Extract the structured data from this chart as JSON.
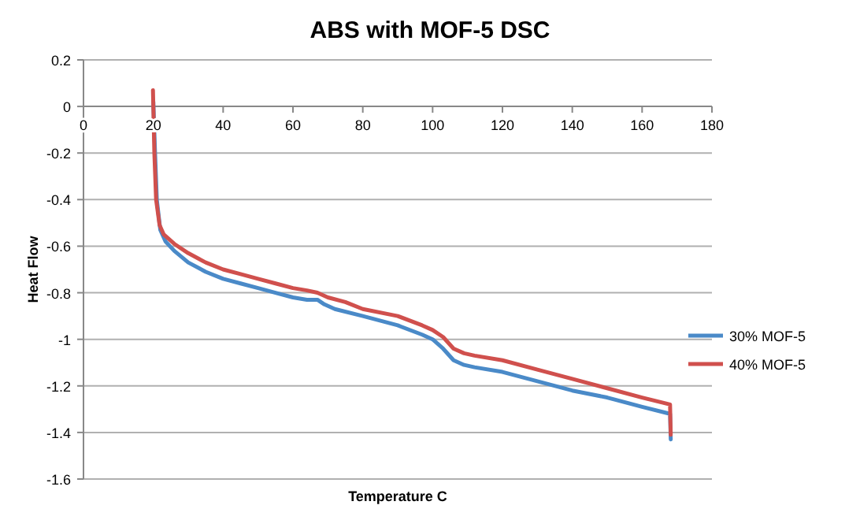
{
  "chart_data": {
    "type": "line",
    "title": "ABS with MOF-5 DSC",
    "xlabel": "Temperature C",
    "ylabel": "Heat Flow",
    "xlim": [
      0,
      180
    ],
    "xticks": [
      0,
      20,
      40,
      60,
      80,
      100,
      120,
      140,
      160,
      180
    ],
    "ylim": [
      -1.6,
      0.2
    ],
    "yticks": [
      -1.6,
      -1.4,
      -1.2,
      -1,
      -0.8,
      -0.6,
      -0.4,
      -0.2,
      0,
      0.2
    ],
    "grid": "y",
    "legend": "right",
    "marker": "none",
    "line_style": "solid",
    "series": [
      {
        "name": "30% MOF-5",
        "color": "#4a8ac8",
        "x": [
          20,
          20.5,
          21,
          22,
          23.5,
          26,
          30,
          35,
          40,
          45,
          50,
          55,
          60,
          64,
          67,
          69,
          72,
          80,
          90,
          97,
          100,
          103,
          106,
          109,
          112,
          120,
          130,
          140,
          150,
          160,
          168,
          168.2
        ],
        "values": [
          0.02,
          -0.2,
          -0.4,
          -0.53,
          -0.58,
          -0.62,
          -0.67,
          -0.71,
          -0.74,
          -0.76,
          -0.78,
          -0.8,
          -0.82,
          -0.83,
          -0.83,
          -0.85,
          -0.87,
          -0.9,
          -0.94,
          -0.98,
          -1.0,
          -1.04,
          -1.09,
          -1.11,
          -1.12,
          -1.14,
          -1.18,
          -1.22,
          -1.25,
          -1.29,
          -1.32,
          -1.43
        ]
      },
      {
        "name": "40% MOF-5",
        "color": "#d0504d",
        "x": [
          19.9,
          20.3,
          20.8,
          21.8,
          23,
          26,
          30,
          35,
          40,
          45,
          50,
          55,
          60,
          64,
          67,
          70,
          75,
          80,
          90,
          97,
          100,
          103,
          106,
          109,
          112,
          120,
          130,
          140,
          150,
          160,
          168,
          168.2
        ],
        "values": [
          0.07,
          -0.2,
          -0.4,
          -0.51,
          -0.55,
          -0.59,
          -0.63,
          -0.67,
          -0.7,
          -0.72,
          -0.74,
          -0.76,
          -0.78,
          -0.79,
          -0.8,
          -0.82,
          -0.84,
          -0.87,
          -0.9,
          -0.94,
          -0.96,
          -0.99,
          -1.04,
          -1.06,
          -1.07,
          -1.09,
          -1.13,
          -1.17,
          -1.21,
          -1.25,
          -1.28,
          -1.41
        ]
      }
    ]
  }
}
